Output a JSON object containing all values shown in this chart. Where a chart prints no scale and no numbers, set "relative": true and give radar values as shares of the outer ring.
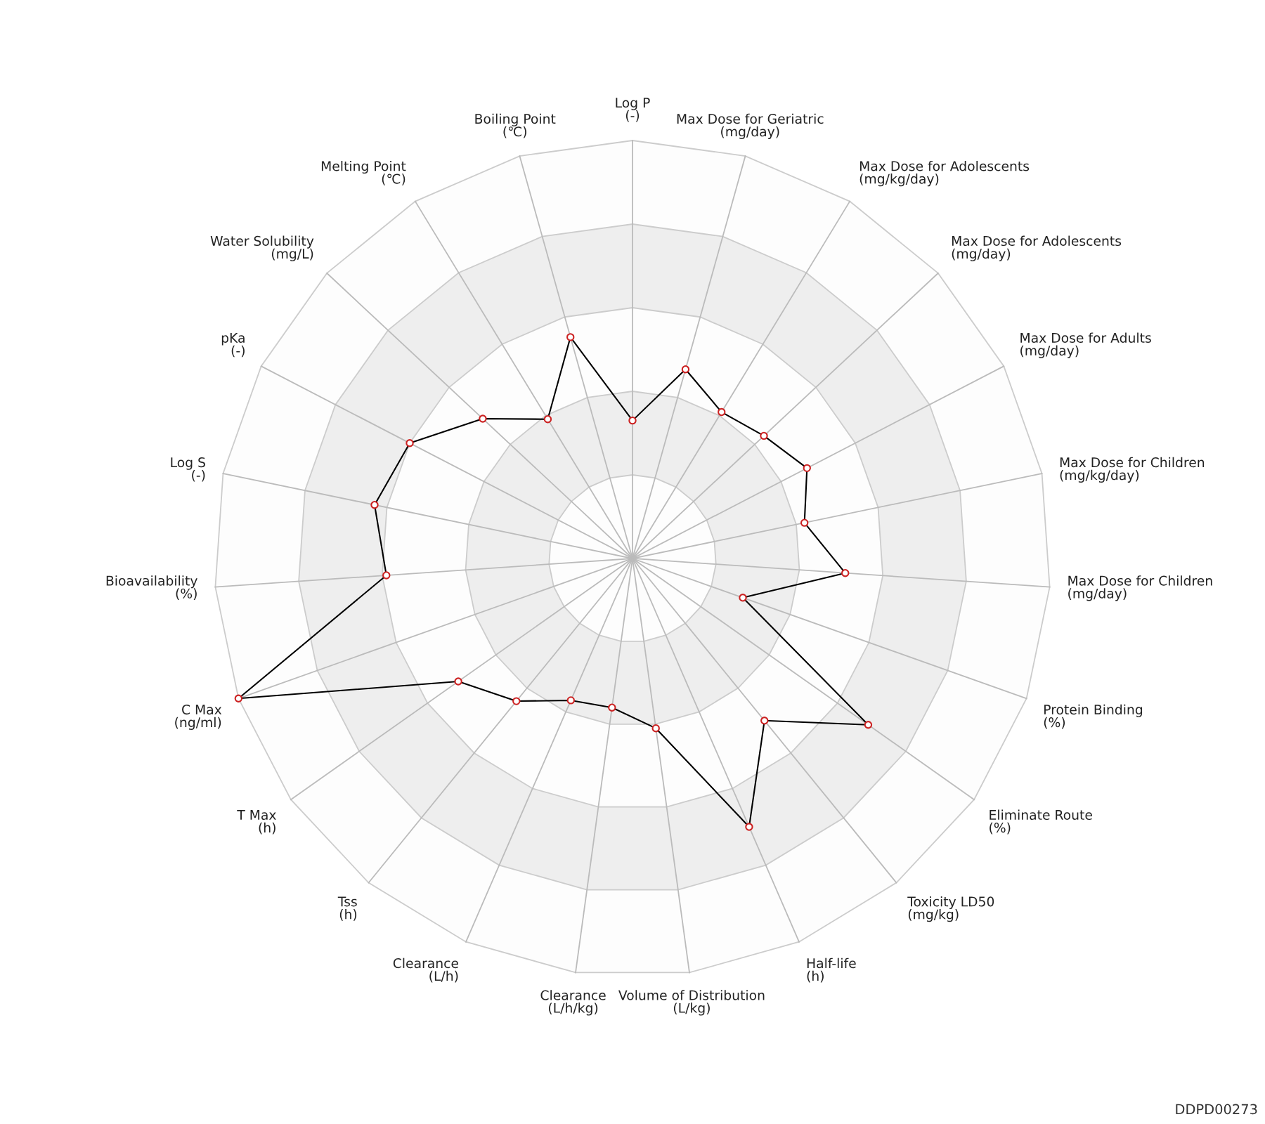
{
  "chart_data": {
    "type": "radar",
    "relative": true,
    "categories": [
      "Log P\n(-)",
      "Max Dose for Geriatric\n(mg/day)",
      "Max Dose for Adolescents\n(mg/kg/day)",
      "Max Dose for Adolescents\n(mg/day)",
      "Max Dose for Adults\n(mg/day)",
      "Max Dose for Children\n(mg/kg/day)",
      "Max Dose for Children\n(mg/day)",
      "Protein Binding\n(%)",
      "Eliminate Route\n(%)",
      "Toxicity LD50\n(mg/kg)",
      "Half-life\n(h)",
      "Volume of Distribution\n(L/kg)",
      "Clearance\n(L/h/kg)",
      "Clearance\n(L/h)",
      "Tss\n(h)",
      "T Max\n(h)",
      "C Max\n(ng/ml)",
      "Bioavailability\n(%)",
      "Log S\n(-)",
      "pKa\n(-)",
      "Water Solubility\n(mg/L)",
      "Melting Point\n(℃)",
      "Boiling Point\n(℃)"
    ],
    "series": [
      {
        "color": "#000000",
        "values": [
          0.33,
          0.47,
          0.41,
          0.43,
          0.47,
          0.42,
          0.51,
          0.28,
          0.69,
          0.5,
          0.7,
          0.41,
          0.36,
          0.37,
          0.44,
          0.51,
          1.0,
          0.59,
          0.63,
          0.6,
          0.49,
          0.39,
          0.55
        ]
      }
    ],
    "marker": "circle",
    "line_style": "solid",
    "annotations": [
      "DDPD00273"
    ]
  }
}
